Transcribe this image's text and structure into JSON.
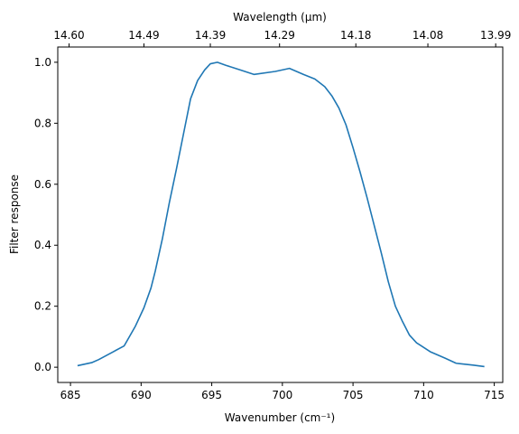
{
  "chart_data": {
    "type": "line",
    "title": "",
    "xlabel": "Wavenumber (cm⁻¹)",
    "ylabel": "Filter response",
    "top_xlabel": "Wavelength (μm)",
    "xlim": [
      684.1,
      715.6
    ],
    "ylim": [
      -0.05,
      1.05
    ],
    "grid": false,
    "legend": "none",
    "line_color": "#1f77b4",
    "x_ticks": [
      685,
      690,
      695,
      700,
      705,
      710,
      715
    ],
    "x_tick_labels": [
      "685",
      "690",
      "695",
      "700",
      "705",
      "710",
      "715"
    ],
    "y_ticks": [
      0.0,
      0.2,
      0.4,
      0.6,
      0.8,
      1.0
    ],
    "y_tick_labels": [
      "0.0",
      "0.2",
      "0.4",
      "0.6",
      "0.8",
      "1.0"
    ],
    "top_ticks": [
      684.9,
      690.2,
      694.9,
      699.8,
      705.2,
      710.3,
      715.1
    ],
    "top_tick_labels": [
      "14.60",
      "14.49",
      "14.39",
      "14.29",
      "14.18",
      "14.08",
      "13.99"
    ],
    "series": [
      {
        "x": [
          685.5,
          686.5,
          687.0,
          688.0,
          688.8,
          689.6,
          690.2,
          690.7,
          691.0,
          691.5,
          692.0,
          692.5,
          693.0,
          693.5,
          694.0,
          694.5,
          694.9,
          695.4,
          696.0,
          697.0,
          698.0,
          699.5,
          700.5,
          701.0,
          701.5,
          702.3,
          703.0,
          703.5,
          704.0,
          704.5,
          705.0,
          705.5,
          706.0,
          706.5,
          707.0,
          707.5,
          708.0,
          708.5,
          709.0,
          709.5,
          710.5,
          711.5,
          712.3,
          713.5,
          714.3
        ],
        "y": [
          0.005,
          0.015,
          0.025,
          0.05,
          0.07,
          0.135,
          0.195,
          0.26,
          0.315,
          0.42,
          0.54,
          0.65,
          0.765,
          0.88,
          0.94,
          0.975,
          0.995,
          1.0,
          0.99,
          0.975,
          0.96,
          0.97,
          0.98,
          0.97,
          0.96,
          0.945,
          0.92,
          0.89,
          0.85,
          0.795,
          0.72,
          0.64,
          0.555,
          0.465,
          0.375,
          0.28,
          0.2,
          0.15,
          0.105,
          0.08,
          0.05,
          0.03,
          0.013,
          0.007,
          0.002
        ]
      }
    ]
  }
}
